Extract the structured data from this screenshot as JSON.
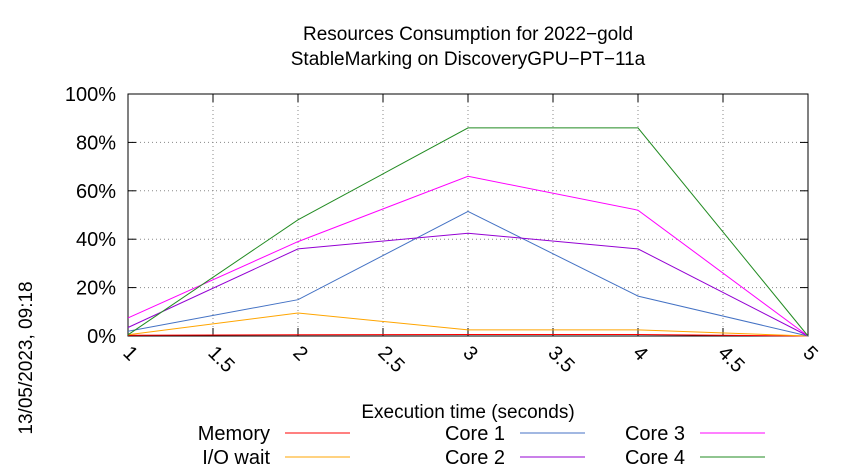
{
  "timestamp": "13/05/2023, 09:18",
  "chart_data": {
    "type": "line",
    "title": [
      "Resources Consumption for 2022−gold",
      "StableMarking on DiscoveryGPU−PT−11a"
    ],
    "xlabel": "Execution time (seconds)",
    "ylabel": "",
    "xlim": [
      1,
      5
    ],
    "ylim": [
      0,
      100
    ],
    "xticks": [
      "1",
      "1.5",
      "2",
      "2.5",
      "3",
      "3.5",
      "4",
      "4.5",
      "5"
    ],
    "yticks": [
      "0%",
      "20%",
      "40%",
      "60%",
      "80%",
      "100%"
    ],
    "grid": true,
    "legend_position": "bottom",
    "x": [
      1,
      2,
      3,
      4,
      5
    ],
    "series": [
      {
        "name": "Memory",
        "color": "#ff0000",
        "values": [
          0.3,
          0.5,
          0.6,
          0.6,
          0
        ]
      },
      {
        "name": "I/O wait",
        "color": "#ffa500",
        "values": [
          0.5,
          9.5,
          2.5,
          2.5,
          0
        ]
      },
      {
        "name": "Core 1",
        "color": "#4472c4",
        "values": [
          2,
          15,
          51.5,
          16.5,
          0
        ]
      },
      {
        "name": "Core 2",
        "color": "#9400d3",
        "values": [
          3.5,
          36,
          42.5,
          36,
          0
        ]
      },
      {
        "name": "Core 3",
        "color": "#ff00ff",
        "values": [
          7.5,
          39,
          66,
          52,
          0
        ]
      },
      {
        "name": "Core 4",
        "color": "#228b22",
        "values": [
          0.5,
          48,
          86,
          86,
          0
        ]
      }
    ]
  }
}
